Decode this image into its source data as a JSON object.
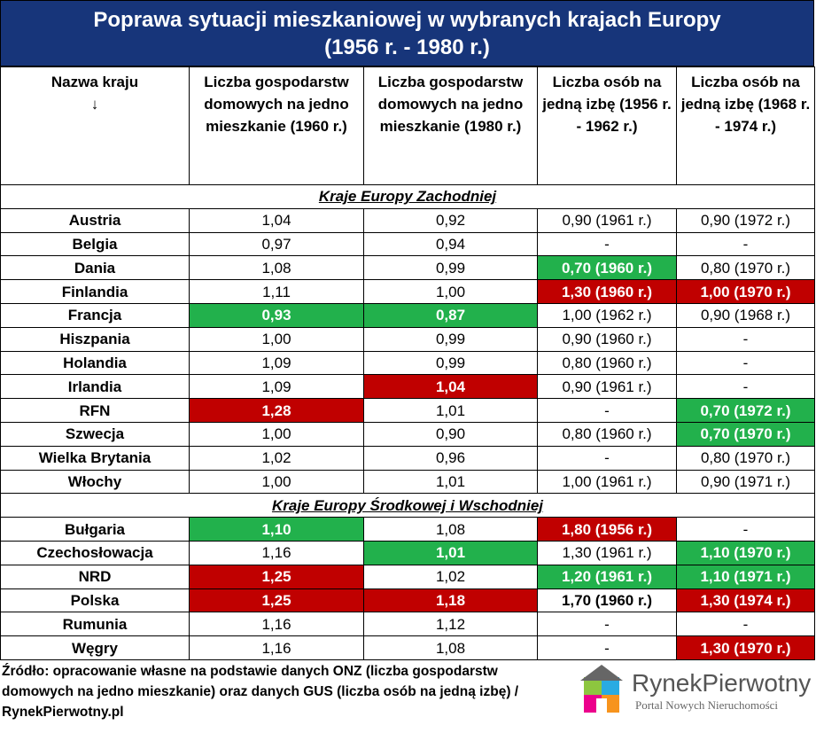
{
  "header": {
    "title": [
      "Poprawa sytuacji mieszkaniowej w wybranych krajach Europy",
      "(1956 r. - 1980 r.)"
    ]
  },
  "table": {
    "columns": [
      "Nazwa kraju",
      "Liczba gospodarstw domowych na jedno mieszkanie (1960 r.)",
      "Liczba gospodarstw domowych na jedno mieszkanie (1980 r.)",
      "Liczba osób na jedną izbę (1956 r. - 1962 r.)",
      "Liczba osób na jedną izbę (1968 r. - 1974 r.)"
    ],
    "arrow": "↓",
    "sections": [
      {
        "title": "Kraje Europy Zachodniej",
        "rows": [
          [
            "Austria",
            "1,04",
            "0,92",
            "0,90 (1961 r.)",
            "0,90 (1972 r.)"
          ],
          [
            "Belgia",
            "0,97",
            "0,94",
            "-",
            "-"
          ],
          [
            "Dania",
            "1,08",
            "0,99",
            {
              "text": "0,70 (1960 r.)",
              "fill": "#22b14c"
            },
            "0,80 (1970 r.)"
          ],
          [
            "Finlandia",
            "1,11",
            "1,00",
            {
              "text": "1,30 (1960 r.)",
              "fill": "#c00000"
            },
            {
              "text": "1,00 (1970 r.)",
              "fill": "#c00000"
            }
          ],
          [
            "Francja",
            {
              "text": "0,93",
              "fill": "#22b14c"
            },
            {
              "text": "0,87",
              "fill": "#22b14c"
            },
            "1,00 (1962 r.)",
            "0,90 (1968 r.)"
          ],
          [
            "Hiszpania",
            "1,00",
            "0,99",
            "0,90 (1960 r.)",
            "-"
          ],
          [
            "Holandia",
            "1,09",
            "0,99",
            "0,80 (1960 r.)",
            "-"
          ],
          [
            "Irlandia",
            "1,09",
            {
              "text": "1,04",
              "fill": "#c00000"
            },
            "0,90 (1961 r.)",
            "-"
          ],
          [
            "RFN",
            {
              "text": "1,28",
              "fill": "#c00000"
            },
            "1,01",
            "-",
            {
              "text": "0,70 (1972 r.)",
              "fill": "#22b14c"
            }
          ],
          [
            "Szwecja",
            "1,00",
            "0,90",
            "0,80 (1960 r.)",
            {
              "text": "0,70 (1970 r.)",
              "fill": "#22b14c"
            }
          ],
          [
            "Wielka Brytania",
            "1,02",
            "0,96",
            "-",
            "0,80 (1970 r.)"
          ],
          [
            "Włochy",
            "1,00",
            "1,01",
            "1,00 (1961 r.)",
            "0,90 (1971 r.)"
          ]
        ]
      },
      {
        "title": "Kraje Europy Środkowej i Wschodniej",
        "rows": [
          [
            "Bułgaria",
            {
              "text": "1,10",
              "fill": "#22b14c"
            },
            "1,08",
            {
              "text": "1,80 (1956 r.)",
              "fill": "#c00000"
            },
            "-"
          ],
          [
            "Czechosłowacja",
            "1,16",
            {
              "text": "1,01",
              "fill": "#22b14c"
            },
            "1,30 (1961 r.)",
            {
              "text": "1,10 (1970 r.)",
              "fill": "#22b14c"
            }
          ],
          [
            "NRD",
            {
              "text": "1,25",
              "fill": "#c00000"
            },
            "1,02",
            {
              "text": "1,20 (1961 r.)",
              "fill": "#22b14c"
            },
            {
              "text": "1,10 (1971 r.)",
              "fill": "#22b14c"
            }
          ],
          [
            "Polska",
            {
              "text": "1,25",
              "fill": "#c00000"
            },
            {
              "text": "1,18",
              "fill": "#c00000"
            },
            {
              "text": "1,70 (1960 r.)",
              "bold": true
            },
            {
              "text": "1,30 (1974 r.)",
              "fill": "#c00000"
            }
          ],
          [
            "Rumunia",
            "1,16",
            "1,12",
            "-",
            "-"
          ],
          [
            "Węgry",
            "1,16",
            "1,08",
            "-",
            {
              "text": "1,30 (1970 r.)",
              "fill": "#c00000"
            }
          ]
        ]
      }
    ]
  },
  "footer": {
    "source": "Źródło: opracowanie własne na podstawie danych ONZ (liczba gospodarstw domowych na jedno mieszkanie) oraz danych GUS (liczba osób na jedną izbę) / RynekPierwotny.pl",
    "logo": {
      "name": "RynekPierwotny",
      "tagline": "Portal Nowych Nieruchomości"
    }
  }
}
